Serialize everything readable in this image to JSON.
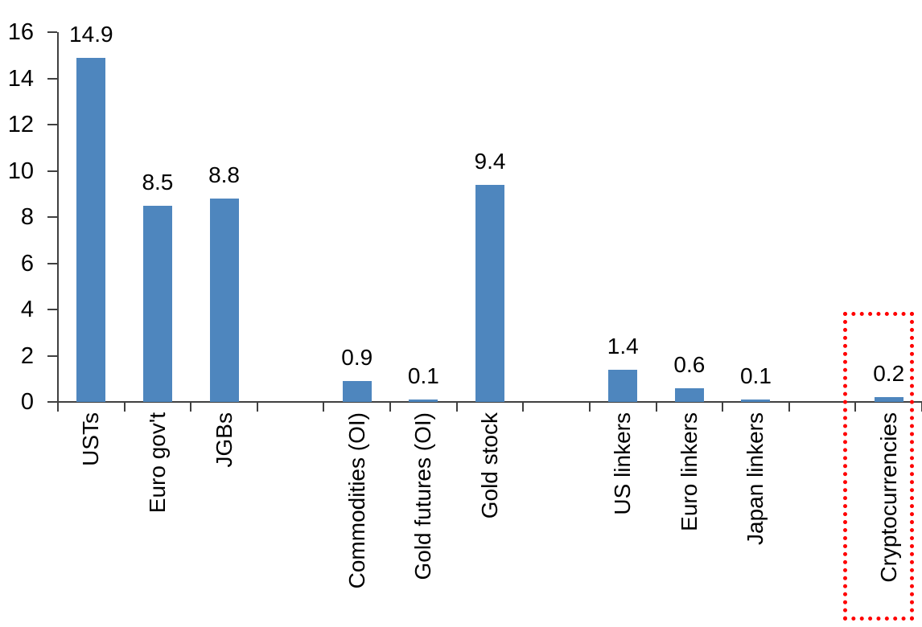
{
  "chart_data": {
    "type": "bar",
    "title": "",
    "xlabel": "",
    "ylabel": "",
    "ylim": [
      0,
      16
    ],
    "yticks": [
      0,
      2,
      4,
      6,
      8,
      10,
      12,
      14,
      16
    ],
    "grid": false,
    "legend": false,
    "bar_color": "#4E86BE",
    "axis_color": "#404040",
    "text_color": "#000000",
    "highlight_box_color": "#FF0000",
    "total_slots": 13,
    "x_axis_rotation": "vertical-bottom-to-top",
    "bars": [
      {
        "category": "USTs",
        "value": 14.9,
        "label": "14.9",
        "slot": 0,
        "highlighted": false
      },
      {
        "category": "Euro gov't",
        "value": 8.5,
        "label": "8.5",
        "slot": 1,
        "highlighted": false
      },
      {
        "category": "JGBs",
        "value": 8.8,
        "label": "8.8",
        "slot": 2,
        "highlighted": false
      },
      {
        "category": "Commodities (OI)",
        "value": 0.9,
        "label": "0.9",
        "slot": 4,
        "highlighted": false
      },
      {
        "category": "Gold futures (OI)",
        "value": 0.1,
        "label": "0.1",
        "slot": 5,
        "highlighted": false
      },
      {
        "category": "Gold stock",
        "value": 9.4,
        "label": "9.4",
        "slot": 6,
        "highlighted": false
      },
      {
        "category": "US linkers",
        "value": 1.4,
        "label": "1.4",
        "slot": 8,
        "highlighted": false
      },
      {
        "category": "Euro linkers",
        "value": 0.6,
        "label": "0.6",
        "slot": 9,
        "highlighted": false
      },
      {
        "category": "Japan linkers",
        "value": 0.1,
        "label": "0.1",
        "slot": 10,
        "highlighted": false
      },
      {
        "category": "Cryptocurrencies",
        "value": 0.2,
        "label": "0.2",
        "slot": 12,
        "highlighted": true
      }
    ]
  }
}
